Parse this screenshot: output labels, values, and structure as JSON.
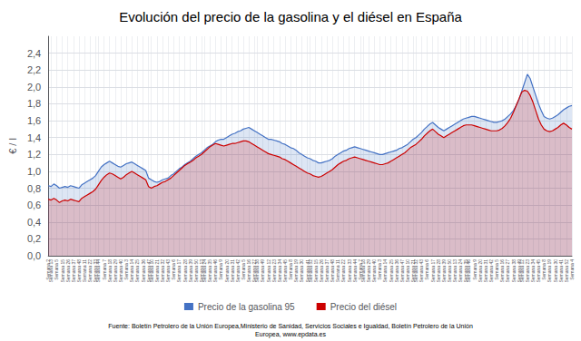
{
  "chart_data": {
    "type": "area",
    "title": "Evolución del precio de la gasolina y el diésel en España",
    "ylabel": "€ / l",
    "annotations": [
      "Fuente: Boletín Petrolero de la Unión Europea,Ministerio de Sanidad, Servicios Sociales e Igualdad, Boletín Petrolero de la Unión\nEuropea, www.epdata.es"
    ],
    "legend": "bottom",
    "grid": true,
    "ylim": [
      0,
      2.6
    ],
    "yticks": [
      {
        "value": 0,
        "label": "0,0"
      },
      {
        "value": 0.2,
        "label": "0,2"
      },
      {
        "value": 0.4,
        "label": "0,4"
      },
      {
        "value": 0.6,
        "label": "0,6"
      },
      {
        "value": 0.8,
        "label": "0,8"
      },
      {
        "value": 1.0,
        "label": "1,0"
      },
      {
        "value": 1.2,
        "label": "1,2"
      },
      {
        "value": 1.4,
        "label": "1,4"
      },
      {
        "value": 1.6,
        "label": "1,6"
      },
      {
        "value": 1.8,
        "label": "1,8"
      },
      {
        "value": 2.0,
        "label": "2,0"
      },
      {
        "value": 2.2,
        "label": "2,2"
      },
      {
        "value": 2.4,
        "label": "2,4"
      }
    ],
    "categories": [
      "Semana 2",
      "Semana 13",
      null,
      "Semana 5",
      null,
      "Semana 15",
      null,
      "Semana 26",
      null,
      "Semana 37",
      null,
      "Semana 48",
      null,
      "Semana 11",
      null,
      "Semana 22",
      null,
      "Semana 33",
      "Semana 44",
      null,
      "Semana 7",
      null,
      "Semana 18",
      null,
      "Semana 29",
      null,
      "Semana 40",
      null,
      "Semana 3",
      null,
      "Semana 14",
      null,
      "Semana 25",
      null,
      "Semana 36",
      null,
      "Semana 47",
      "Semana 10",
      null,
      "Semana 21",
      null,
      "Semana 32",
      null,
      "Semana 43",
      null,
      "Semana 6",
      null,
      "Semana 17",
      null,
      "Semana 28",
      null,
      "Semana 39",
      null,
      "Semana 50",
      null,
      "Semana 13",
      "Semana 24",
      null,
      "Semana 35",
      null,
      "Semana 46",
      null,
      "Semana 9",
      null,
      "Semana 20",
      null,
      "Semana 31",
      null,
      "Semana 42",
      null,
      "Semana 5",
      null,
      "Semana 16",
      null,
      "Semana 27",
      "Semana 38",
      null,
      "Semana 49",
      null,
      "Semana 12",
      null,
      "Semana 23",
      null,
      "Semana 34",
      null,
      "Semana 45",
      null,
      "Semana 8",
      null,
      "Semana 19",
      null,
      "Semana 30",
      null,
      "Semana 41",
      "Semana 52",
      null,
      "Semana 15",
      null,
      "Semana 26",
      null,
      "Semana 37",
      null,
      "Semana 48",
      null,
      "Semana 11",
      null,
      "Semana 22",
      null,
      "Semana 33",
      null,
      "Semana 44",
      null,
      "Semana 7",
      "Semana 18",
      null,
      "Semana 29",
      null,
      "Semana 40",
      null,
      "Semana 3",
      null,
      "Semana 14",
      null,
      "Semana 25",
      null,
      "Semana 36",
      null,
      "Semana 47",
      null,
      "Semana 10",
      null,
      "Semana 21",
      "Semana 32",
      null,
      "Semana 43",
      null,
      "Semana 6",
      null,
      "Semana 17",
      null,
      "Semana 28",
      null,
      "Semana 39",
      null,
      "Semana 50",
      null,
      "Semana 13",
      null,
      "Semana 24",
      null,
      "Semana 35",
      "Semana 46",
      null,
      "Semana 9",
      null,
      "Semana 20",
      null,
      "Semana 31",
      null,
      "Semana 42",
      null,
      "Semana 5",
      null,
      "Semana 16",
      null,
      "Semana 27",
      null,
      "Semana 38",
      null,
      "Semana 49",
      "Semana 12",
      null,
      "Semana 23",
      null,
      "Semana 34",
      null,
      "Semana 45",
      null,
      "Semana 8",
      null,
      "Semana 19",
      null,
      "Semana 30",
      null,
      "Semana 41",
      null,
      "Semana 52",
      null,
      "Semana 4"
    ],
    "series": [
      {
        "name": "Precio de la gasolina 95",
        "color": "#4472C4",
        "values": [
          0.83,
          0.82,
          0.85,
          0.83,
          0.8,
          0.81,
          0.82,
          0.81,
          0.83,
          0.82,
          0.81,
          0.8,
          0.84,
          0.86,
          0.88,
          0.9,
          0.92,
          0.95,
          1.0,
          1.05,
          1.08,
          1.1,
          1.12,
          1.1,
          1.08,
          1.06,
          1.05,
          1.07,
          1.09,
          1.1,
          1.11,
          1.09,
          1.07,
          1.05,
          1.03,
          1.01,
          0.92,
          0.9,
          0.88,
          0.87,
          0.88,
          0.9,
          0.91,
          0.92,
          0.95,
          0.97,
          1.0,
          1.03,
          1.05,
          1.08,
          1.1,
          1.12,
          1.15,
          1.18,
          1.2,
          1.22,
          1.25,
          1.28,
          1.3,
          1.32,
          1.35,
          1.37,
          1.38,
          1.38,
          1.4,
          1.42,
          1.44,
          1.45,
          1.47,
          1.48,
          1.5,
          1.51,
          1.52,
          1.5,
          1.48,
          1.46,
          1.44,
          1.42,
          1.4,
          1.38,
          1.38,
          1.37,
          1.36,
          1.35,
          1.33,
          1.32,
          1.3,
          1.28,
          1.27,
          1.25,
          1.22,
          1.2,
          1.18,
          1.16,
          1.15,
          1.13,
          1.12,
          1.1,
          1.1,
          1.11,
          1.12,
          1.13,
          1.15,
          1.18,
          1.2,
          1.22,
          1.24,
          1.25,
          1.27,
          1.28,
          1.29,
          1.28,
          1.27,
          1.26,
          1.25,
          1.24,
          1.23,
          1.22,
          1.21,
          1.2,
          1.2,
          1.21,
          1.22,
          1.23,
          1.24,
          1.25,
          1.27,
          1.28,
          1.3,
          1.32,
          1.35,
          1.38,
          1.4,
          1.43,
          1.46,
          1.5,
          1.53,
          1.56,
          1.58,
          1.55,
          1.52,
          1.5,
          1.48,
          1.5,
          1.52,
          1.54,
          1.56,
          1.58,
          1.6,
          1.62,
          1.63,
          1.64,
          1.65,
          1.65,
          1.64,
          1.63,
          1.62,
          1.61,
          1.6,
          1.59,
          1.58,
          1.58,
          1.59,
          1.6,
          1.62,
          1.65,
          1.68,
          1.72,
          1.78,
          1.85,
          1.95,
          2.05,
          2.15,
          2.1,
          2.0,
          1.9,
          1.8,
          1.72,
          1.65,
          1.63,
          1.62,
          1.63,
          1.65,
          1.67,
          1.7,
          1.73,
          1.75,
          1.77,
          1.78
        ]
      },
      {
        "name": "Precio del diésel",
        "color": "#CC0000",
        "values": [
          0.67,
          0.66,
          0.68,
          0.66,
          0.63,
          0.65,
          0.66,
          0.65,
          0.67,
          0.66,
          0.65,
          0.64,
          0.68,
          0.7,
          0.72,
          0.74,
          0.76,
          0.79,
          0.84,
          0.89,
          0.93,
          0.96,
          0.98,
          0.97,
          0.95,
          0.93,
          0.91,
          0.93,
          0.96,
          0.98,
          1.0,
          0.98,
          0.96,
          0.94,
          0.92,
          0.9,
          0.82,
          0.8,
          0.82,
          0.83,
          0.85,
          0.87,
          0.88,
          0.9,
          0.92,
          0.95,
          0.98,
          1.01,
          1.04,
          1.07,
          1.09,
          1.11,
          1.13,
          1.16,
          1.18,
          1.2,
          1.23,
          1.26,
          1.29,
          1.31,
          1.33,
          1.32,
          1.31,
          1.3,
          1.31,
          1.32,
          1.33,
          1.33,
          1.34,
          1.35,
          1.36,
          1.36,
          1.35,
          1.33,
          1.31,
          1.29,
          1.27,
          1.25,
          1.23,
          1.21,
          1.2,
          1.19,
          1.18,
          1.17,
          1.15,
          1.14,
          1.12,
          1.1,
          1.08,
          1.06,
          1.04,
          1.02,
          1.0,
          0.98,
          0.97,
          0.95,
          0.94,
          0.93,
          0.94,
          0.96,
          0.98,
          1.0,
          1.02,
          1.05,
          1.08,
          1.1,
          1.12,
          1.13,
          1.15,
          1.16,
          1.17,
          1.16,
          1.15,
          1.14,
          1.13,
          1.12,
          1.11,
          1.1,
          1.09,
          1.08,
          1.08,
          1.09,
          1.1,
          1.12,
          1.14,
          1.16,
          1.18,
          1.2,
          1.22,
          1.25,
          1.28,
          1.3,
          1.32,
          1.35,
          1.38,
          1.42,
          1.45,
          1.48,
          1.5,
          1.47,
          1.44,
          1.42,
          1.4,
          1.42,
          1.44,
          1.46,
          1.48,
          1.5,
          1.52,
          1.54,
          1.55,
          1.55,
          1.55,
          1.54,
          1.53,
          1.52,
          1.51,
          1.5,
          1.49,
          1.48,
          1.48,
          1.48,
          1.49,
          1.51,
          1.54,
          1.58,
          1.63,
          1.7,
          1.78,
          1.86,
          1.94,
          1.96,
          1.95,
          1.9,
          1.82,
          1.72,
          1.62,
          1.55,
          1.5,
          1.48,
          1.47,
          1.48,
          1.5,
          1.52,
          1.55,
          1.57,
          1.55,
          1.52,
          1.5
        ]
      }
    ]
  }
}
